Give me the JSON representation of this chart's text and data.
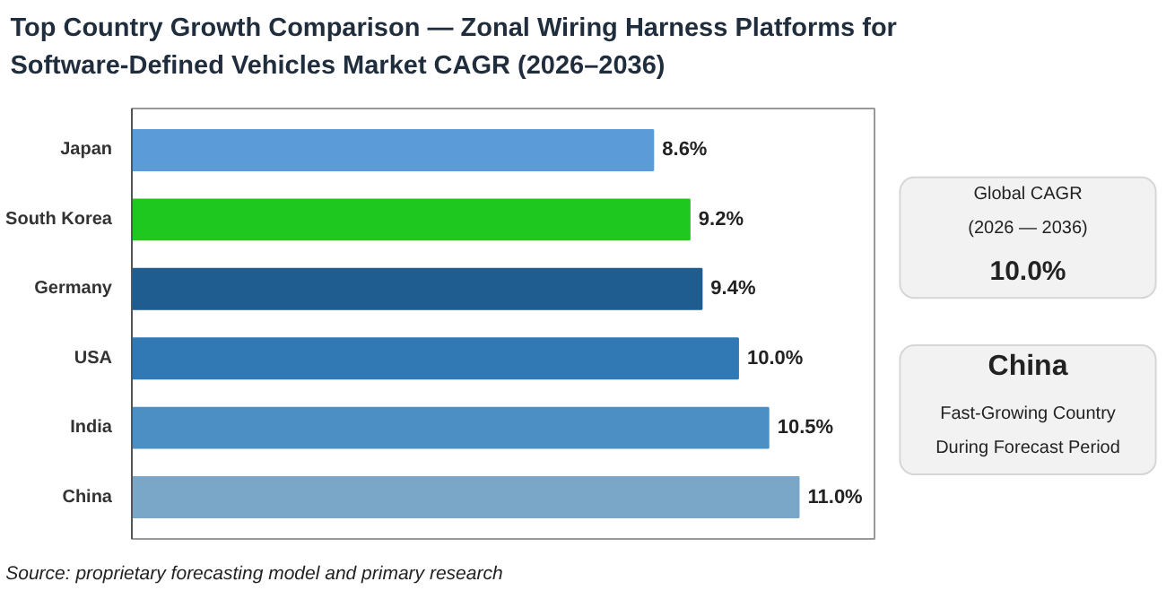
{
  "chart_data": {
    "type": "bar",
    "orientation": "horizontal",
    "title": "Top Country Growth Comparison — Zonal Wiring Harness Platforms for Software-Defined Vehicles Market CAGR (2026–2036)",
    "categories": [
      "Japan",
      "South Korea",
      "Germany",
      "USA",
      "India",
      "China"
    ],
    "values": [
      8.6,
      9.2,
      9.4,
      10.0,
      10.5,
      11.0
    ],
    "value_labels": [
      "8.6%",
      "9.2%",
      "9.4%",
      "10.0%",
      "10.5%",
      "11.0%"
    ],
    "colors": [
      "#5b9bd8",
      "#1ec81e",
      "#1f5c8f",
      "#3079b4",
      "#4b8fc4",
      "#7aa7c8"
    ],
    "annotations": [
      "Global CAGR",
      "(2026 — 2036)",
      "10.0%",
      "China",
      "Fast-Growing Country",
      "During Forecast Period",
      "Source: proprietary forecasting model and primary research"
    ]
  }
}
